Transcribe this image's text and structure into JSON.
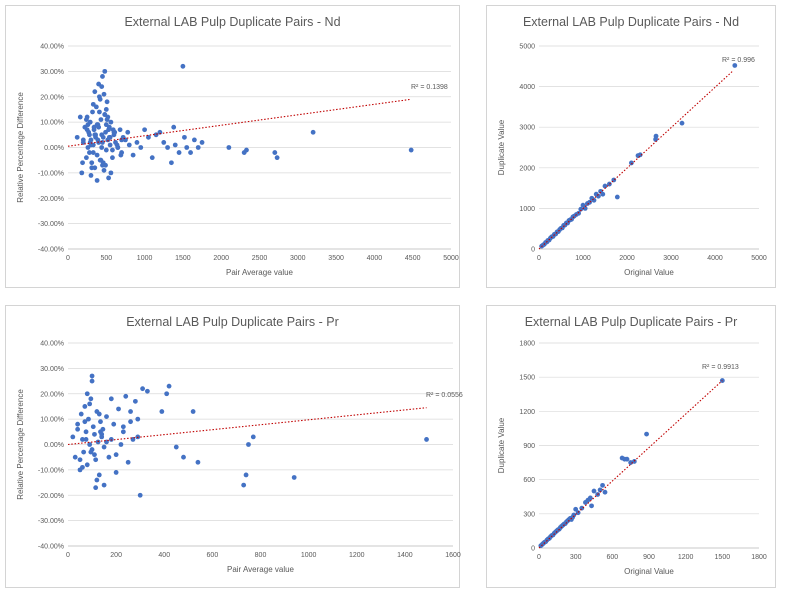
{
  "charts": {
    "colors": {
      "marker": "#4472C4",
      "trendline": "#C00000",
      "grid": "#D9D9D9",
      "text": "#595959"
    },
    "nd_rpd": {
      "title": "External LAB Pulp Duplicate Pairs - Nd",
      "r2_label": "R² = 0.1398"
    },
    "nd_dup": {
      "title": "External LAB Pulp Duplicate Pairs - Nd",
      "r2_label": "R² = 0.996"
    },
    "pr_rpd": {
      "title": "External LAB Pulp Duplicate Pairs - Pr",
      "r2_label": "R² = 0.0556"
    },
    "pr_dup": {
      "title": "External LAB Pulp Duplicate Pairs - Pr",
      "r2_label": "R² = 0.9913"
    }
  },
  "chart_data": [
    {
      "type": "scatter",
      "title": "External LAB Pulp Duplicate Pairs - Nd",
      "xlabel": "Pair Average value",
      "ylabel": "Relative Percentage Difference",
      "xlim": [
        0,
        5000
      ],
      "ylim": [
        -40,
        40
      ],
      "x_ticks": [
        "0",
        "500",
        "1000",
        "1500",
        "2000",
        "2500",
        "3000",
        "3500",
        "4000",
        "4500",
        "5000"
      ],
      "y_ticks": [
        "-40.00%",
        "-30.00%",
        "-20.00%",
        "-10.00%",
        "0.00%",
        "10.00%",
        "20.00%",
        "30.00%",
        "40.00%"
      ],
      "grid": true,
      "trendline": {
        "type": "linear",
        "r2": 0.1398,
        "y_start": 0.5,
        "y_end": 19
      },
      "x": [
        120,
        180,
        200,
        220,
        240,
        250,
        260,
        270,
        280,
        290,
        300,
        310,
        320,
        330,
        340,
        350,
        360,
        370,
        380,
        390,
        400,
        410,
        420,
        430,
        440,
        450,
        460,
        470,
        480,
        490,
        500,
        510,
        520,
        530,
        540,
        550,
        560,
        580,
        600,
        620,
        650,
        680,
        700,
        720,
        750,
        780,
        800,
        850,
        900,
        950,
        300,
        350,
        400,
        450,
        500,
        420,
        380,
        330,
        470,
        520,
        260,
        310,
        360,
        410,
        460,
        510,
        560,
        610,
        200,
        250,
        300,
        350,
        400,
        450,
        500,
        550,
        600,
        650,
        700,
        280,
        330,
        380,
        430,
        480,
        530,
        580,
        440,
        480,
        160,
        190,
        240,
        290,
        340,
        390,
        440,
        490,
        540,
        590,
        640,
        690,
        1000,
        1050,
        1100,
        1150,
        1200,
        1250,
        1300,
        1350,
        1380,
        1400,
        1450,
        1500,
        1520,
        1550,
        1600,
        1650,
        1700,
        1750,
        2100,
        2300,
        2330,
        2700,
        2730,
        3200,
        4480
      ],
      "y": [
        4,
        -10,
        2,
        8,
        -4,
        12,
        0,
        6,
        -2,
        10,
        3,
        -6,
        14,
        1,
        7,
        -8,
        5,
        16,
        -3,
        9,
        2,
        20,
        -5,
        11,
        0,
        28,
        4,
        -9,
        13,
        6,
        -1,
        18,
        3,
        -12,
        8,
        1,
        10,
        -4,
        5,
        2,
        0,
        7,
        -2,
        4,
        3,
        6,
        1,
        -3,
        2,
        0,
        -11,
        22,
        25,
        -7,
        15,
        19,
        -13,
        17,
        21,
        12,
        9,
        -8,
        4,
        14,
        -6,
        11,
        -10,
        6,
        3,
        7,
        1,
        5,
        8,
        2,
        9,
        4,
        6,
        0,
        3,
        5,
        -2,
        9,
        -5,
        13,
        7,
        -1,
        24,
        30,
        12,
        -6,
        11,
        2,
        8,
        3,
        5,
        -7,
        4,
        7,
        1,
        -3,
        7,
        4,
        -4,
        5,
        6,
        2,
        0,
        -6,
        8,
        1,
        -2,
        32,
        4,
        0,
        -2,
        3,
        0,
        2,
        0,
        -2,
        -1,
        -2,
        -4,
        6,
        -1
      ]
    },
    {
      "type": "scatter",
      "title": "External LAB Pulp Duplicate Pairs - Nd",
      "xlabel": "Original Value",
      "ylabel": "Duplicate Value",
      "xlim": [
        0,
        5000
      ],
      "ylim": [
        0,
        5000
      ],
      "x_ticks": [
        "0",
        "1000",
        "2000",
        "3000",
        "4000",
        "5000"
      ],
      "y_ticks": [
        "0",
        "1000",
        "2000",
        "3000",
        "4000",
        "5000"
      ],
      "grid": true,
      "trendline": {
        "type": "linear",
        "r2": 0.996,
        "x_start": 0,
        "x_end": 4400,
        "y_start": 0,
        "y_end": 4380
      },
      "x": [
        60,
        90,
        120,
        150,
        180,
        200,
        230,
        260,
        290,
        320,
        350,
        380,
        410,
        440,
        470,
        500,
        530,
        560,
        590,
        620,
        650,
        680,
        710,
        740,
        770,
        800,
        850,
        900,
        950,
        1000,
        1050,
        1100,
        1150,
        1200,
        1250,
        1300,
        1350,
        1400,
        1450,
        1500,
        1600,
        1700,
        1780,
        2100,
        2250,
        2300,
        2650,
        2660,
        3250,
        4450
      ],
      "y": [
        70,
        95,
        115,
        160,
        175,
        210,
        220,
        270,
        300,
        310,
        360,
        370,
        420,
        430,
        480,
        510,
        520,
        580,
        590,
        640,
        640,
        700,
        720,
        730,
        790,
        810,
        850,
        880,
        980,
        1080,
        1000,
        1120,
        1150,
        1250,
        1200,
        1350,
        1300,
        1420,
        1350,
        1550,
        1600,
        1700,
        1280,
        2120,
        2300,
        2320,
        2700,
        2780,
        3100,
        4520
      ]
    },
    {
      "type": "scatter",
      "title": "External LAB Pulp Duplicate Pairs - Pr",
      "xlabel": "Pair Average value",
      "ylabel": "Relative Percentage Difference",
      "xlim": [
        0,
        1600
      ],
      "ylim": [
        -40,
        40
      ],
      "x_ticks": [
        "0",
        "200",
        "400",
        "600",
        "800",
        "1000",
        "1200",
        "1400",
        "1600"
      ],
      "y_ticks": [
        "-40.00%",
        "-30.00%",
        "-20.00%",
        "-10.00%",
        "0.00%",
        "10.00%",
        "20.00%",
        "30.00%",
        "40.00%"
      ],
      "grid": true,
      "trendline": {
        "type": "linear",
        "r2": 0.0556,
        "y_start": 0,
        "y_end": 14.5
      },
      "x": [
        20,
        30,
        40,
        50,
        55,
        60,
        65,
        70,
        75,
        80,
        85,
        90,
        95,
        100,
        105,
        110,
        115,
        120,
        125,
        130,
        135,
        140,
        145,
        150,
        160,
        170,
        180,
        190,
        200,
        210,
        220,
        230,
        240,
        250,
        260,
        270,
        280,
        290,
        300,
        40,
        60,
        80,
        100,
        120,
        140,
        160,
        50,
        70,
        90,
        110,
        130,
        150,
        100,
        115,
        75,
        95,
        135,
        180,
        200,
        230,
        260,
        290,
        310,
        330,
        390,
        410,
        420,
        450,
        480,
        520,
        540,
        730,
        740,
        750,
        770,
        940,
        1490
      ],
      "y": [
        3,
        -5,
        8,
        -10,
        12,
        2,
        -3,
        15,
        5,
        -8,
        10,
        0,
        18,
        -2,
        7,
        4,
        -6,
        13,
        1,
        -12,
        9,
        3,
        6,
        -1,
        11,
        -5,
        2,
        8,
        -4,
        14,
        0,
        5,
        19,
        -7,
        9,
        2,
        17,
        3,
        -20,
        6,
        -9,
        20,
        27,
        -14,
        4,
        1,
        -6,
        9,
        16,
        -4,
        12,
        -16,
        25,
        -17,
        2,
        -3,
        5,
        18,
        -11,
        7,
        13,
        10,
        22,
        21,
        13,
        20,
        23,
        -1,
        -5,
        13,
        -7,
        -16,
        -12,
        0,
        3,
        -13,
        2
      ]
    },
    {
      "type": "scatter",
      "title": "External LAB Pulp Duplicate Pairs - Pr",
      "xlabel": "Original Value",
      "ylabel": "Duplicate Value",
      "xlim": [
        0,
        1800
      ],
      "ylim": [
        0,
        1800
      ],
      "x_ticks": [
        "0",
        "300",
        "600",
        "900",
        "1200",
        "1500",
        "1800"
      ],
      "y_ticks": [
        "0",
        "300",
        "600",
        "900",
        "1200",
        "1500",
        "1800"
      ],
      "grid": true,
      "trendline": {
        "type": "linear",
        "r2": 0.9913,
        "x_start": 0,
        "x_end": 1500,
        "y_start": 0,
        "y_end": 1470
      },
      "x": [
        15,
        25,
        35,
        45,
        55,
        65,
        75,
        85,
        95,
        105,
        115,
        125,
        135,
        145,
        155,
        165,
        175,
        185,
        195,
        205,
        215,
        225,
        235,
        245,
        255,
        265,
        275,
        285,
        300,
        320,
        350,
        380,
        400,
        420,
        430,
        450,
        480,
        500,
        520,
        540,
        680,
        700,
        720,
        750,
        780,
        880,
        1500
      ],
      "y": [
        20,
        30,
        40,
        50,
        55,
        70,
        80,
        85,
        100,
        110,
        115,
        130,
        140,
        150,
        160,
        165,
        180,
        190,
        200,
        210,
        215,
        230,
        240,
        250,
        260,
        250,
        270,
        290,
        340,
        310,
        350,
        400,
        420,
        440,
        370,
        500,
        470,
        510,
        550,
        490,
        790,
        780,
        780,
        750,
        760,
        1000,
        1470
      ]
    }
  ]
}
